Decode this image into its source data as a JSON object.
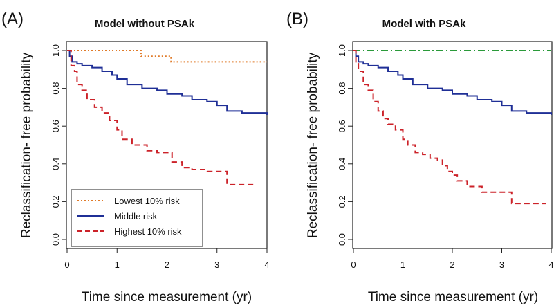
{
  "chart_data": [
    {
      "type": "line",
      "panel_label": "(A)",
      "title": "Model without PSAk",
      "xlabel": "Time since measurement (yr)",
      "ylabel": "Reclassification- free probability",
      "xlim": [
        0,
        4
      ],
      "ylim": [
        0,
        1
      ],
      "x_ticks": [
        "0",
        "1",
        "2",
        "3",
        "4"
      ],
      "y_ticks": [
        "0.0",
        "0.2",
        "0.4",
        "0.6",
        "0.8",
        "1.0"
      ],
      "grid": false,
      "legend": {
        "placement": "bottom-left",
        "entries": [
          "Lowest 10% risk",
          "Middle risk",
          "Highest 10% risk"
        ]
      },
      "series": [
        {
          "name": "Lowest 10% risk",
          "color": "#e07b2a",
          "style": "dotted",
          "x": [
            0,
            1.48,
            1.48,
            2.08,
            2.08,
            4.0
          ],
          "y": [
            1.0,
            1.0,
            0.97,
            0.97,
            0.94,
            0.94
          ]
        },
        {
          "name": "Middle risk",
          "color": "#1f2f96",
          "style": "solid",
          "x": [
            0,
            0.05,
            0.1,
            0.2,
            0.3,
            0.5,
            0.7,
            0.9,
            1.0,
            1.2,
            1.5,
            1.8,
            2.0,
            2.3,
            2.5,
            2.8,
            3.0,
            3.2,
            3.5,
            3.8,
            4.0
          ],
          "y": [
            1.0,
            0.97,
            0.94,
            0.93,
            0.92,
            0.91,
            0.89,
            0.87,
            0.85,
            0.82,
            0.8,
            0.79,
            0.77,
            0.76,
            0.74,
            0.73,
            0.71,
            0.68,
            0.67,
            0.67,
            0.66
          ]
        },
        {
          "name": "Highest 10% risk",
          "color": "#cc2229",
          "style": "dashed",
          "x": [
            0,
            0.08,
            0.15,
            0.2,
            0.3,
            0.4,
            0.55,
            0.7,
            0.85,
            1.0,
            1.1,
            1.3,
            1.5,
            1.6,
            1.8,
            2.1,
            2.3,
            2.5,
            2.8,
            3.2,
            3.8
          ],
          "y": [
            1.0,
            0.92,
            0.89,
            0.82,
            0.79,
            0.74,
            0.7,
            0.67,
            0.63,
            0.58,
            0.53,
            0.5,
            0.5,
            0.47,
            0.46,
            0.41,
            0.38,
            0.37,
            0.36,
            0.29,
            0.29
          ]
        }
      ]
    },
    {
      "type": "line",
      "panel_label": "(B)",
      "title": "Model with PSAk",
      "xlabel": "Time since measurement (yr)",
      "ylabel": "Reclassification- free probability",
      "xlim": [
        0,
        4
      ],
      "ylim": [
        0,
        1
      ],
      "x_ticks": [
        "0",
        "1",
        "2",
        "3",
        "4"
      ],
      "y_ticks": [
        "0.0",
        "0.2",
        "0.4",
        "0.6",
        "0.8",
        "1.0"
      ],
      "grid": false,
      "series": [
        {
          "color": "#2a9a3a",
          "style": "dashdot",
          "x": [
            0,
            4.0
          ],
          "y": [
            1.0,
            1.0
          ]
        },
        {
          "color": "#1f2f96",
          "style": "solid",
          "x": [
            0,
            0.05,
            0.1,
            0.2,
            0.3,
            0.5,
            0.7,
            0.9,
            1.0,
            1.2,
            1.5,
            1.8,
            2.0,
            2.3,
            2.5,
            2.8,
            3.0,
            3.2,
            3.5,
            3.8,
            4.0
          ],
          "y": [
            1.0,
            0.97,
            0.94,
            0.93,
            0.92,
            0.91,
            0.89,
            0.87,
            0.85,
            0.82,
            0.8,
            0.79,
            0.77,
            0.76,
            0.74,
            0.73,
            0.71,
            0.68,
            0.67,
            0.67,
            0.66
          ]
        },
        {
          "color": "#cc2229",
          "style": "dashed",
          "x": [
            0,
            0.05,
            0.1,
            0.2,
            0.3,
            0.4,
            0.5,
            0.6,
            0.7,
            0.85,
            1.0,
            1.1,
            1.25,
            1.4,
            1.55,
            1.7,
            1.8,
            1.9,
            2.0,
            2.1,
            2.3,
            2.6,
            3.2,
            3.9
          ],
          "y": [
            1.0,
            0.93,
            0.89,
            0.82,
            0.79,
            0.73,
            0.68,
            0.64,
            0.61,
            0.58,
            0.53,
            0.5,
            0.46,
            0.45,
            0.43,
            0.42,
            0.39,
            0.36,
            0.34,
            0.31,
            0.28,
            0.25,
            0.19,
            0.19
          ]
        }
      ]
    }
  ]
}
